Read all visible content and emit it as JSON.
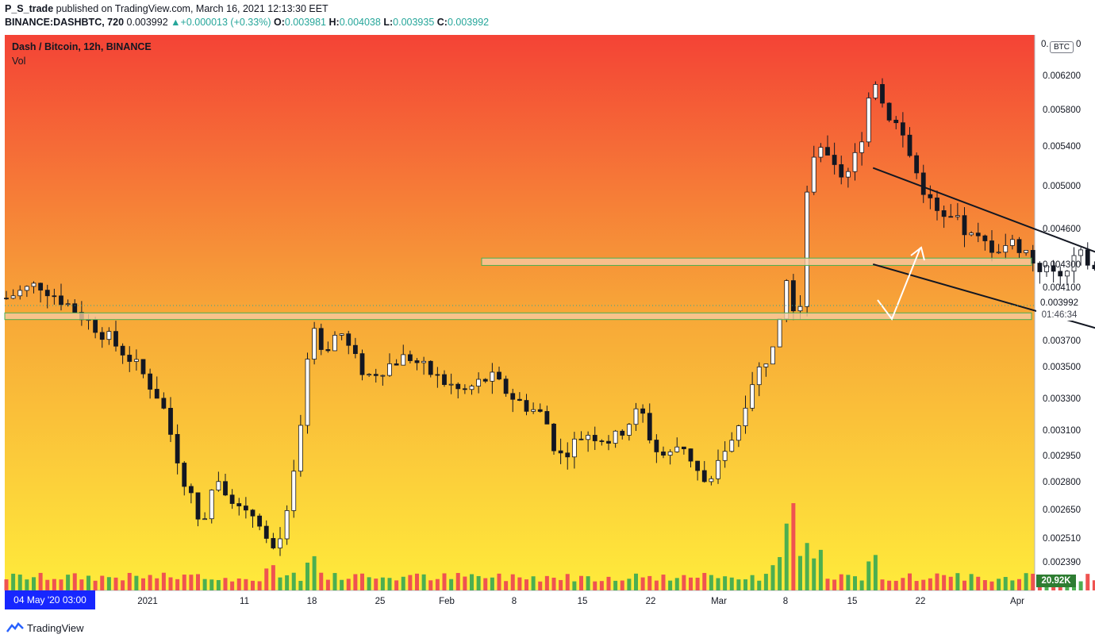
{
  "header": {
    "author": "P_S_trade",
    "published_text": "published on TradingView.com, March 16, 2021 12:13:30 EET",
    "symbol": "BINANCE:DASHBTC, 720",
    "last": "0.003992",
    "change": "+0.000013 (+0.33%)",
    "open_label": "O:",
    "open": "0.003981",
    "high_label": "H:",
    "high": "0.004038",
    "low_label": "L:",
    "low": "0.003935",
    "close_label": "C:",
    "close": "0.003992"
  },
  "legend": {
    "title": "Dash / Bitcoin, 12h, BINANCE",
    "vol": "Vol"
  },
  "price_axis": {
    "currency": "BTC",
    "top_partial": "0.",
    "top_partial_end": "0",
    "last_price": "0.003992",
    "countdown": "01:46:34",
    "volume_label": "20.92K"
  },
  "date_badge": "04 May '20   03:00",
  "footer": {
    "brand": "TradingView"
  },
  "colors": {
    "up": "#26a69a",
    "bull_body": "#ffffff",
    "bear_body": "#131722",
    "vol_up": "#4caf50",
    "vol_down": "#ef5350",
    "zone_fill": "#f8c9a0",
    "zone_border": "#4caf50",
    "gradient_top": "#f44336",
    "gradient_mid": "#f7a738",
    "gradient_bottom": "#ffeb3b"
  },
  "chart_data": {
    "type": "candlestick",
    "title": "Dash / Bitcoin, 12h, BINANCE",
    "ylabel": "BTC",
    "scale": "log",
    "ylim": [
      0.00232,
      0.0067
    ],
    "y_ticks": [
      "0.006200",
      "0.005800",
      "0.005400",
      "0.005000",
      "0.004600",
      "0.004300",
      "0.004100",
      "0.003700",
      "0.003500",
      "0.003300",
      "0.003100",
      "0.002950",
      "0.002800",
      "0.002650",
      "0.002510",
      "0.002390"
    ],
    "x_ticks": [
      "2021",
      "11",
      "18",
      "25",
      "Feb",
      "8",
      "15",
      "22",
      "Mar",
      "8",
      "15",
      "22",
      "Apr"
    ],
    "price_path": [
      [
        "2020-12-13",
        0.00475
      ],
      [
        "2020-12-17",
        0.00465
      ],
      [
        "2020-12-20",
        0.0043
      ],
      [
        "2020-12-21",
        0.004
      ],
      [
        "2020-12-24",
        0.00415
      ],
      [
        "2020-12-26",
        0.004
      ],
      [
        "2020-12-29",
        0.00375
      ],
      [
        "2020-12-31",
        0.00355
      ],
      [
        "2021-01-02",
        0.0033
      ],
      [
        "2021-01-03",
        0.003
      ],
      [
        "2021-01-04",
        0.00275
      ],
      [
        "2021-01-05",
        0.0026
      ],
      [
        "2021-01-06",
        0.00285
      ],
      [
        "2021-01-07",
        0.00275
      ],
      [
        "2021-01-08",
        0.00262
      ],
      [
        "2021-01-09",
        0.00265
      ],
      [
        "2021-01-10",
        0.00245
      ],
      [
        "2021-01-11",
        0.00255
      ],
      [
        "2021-01-12",
        0.003
      ],
      [
        "2021-01-13",
        0.0038
      ],
      [
        "2021-01-14",
        0.00365
      ],
      [
        "2021-01-15",
        0.0038
      ],
      [
        "2021-01-16",
        0.0036
      ],
      [
        "2021-01-17",
        0.00345
      ],
      [
        "2021-01-20",
        0.0036
      ],
      [
        "2021-01-22",
        0.00345
      ],
      [
        "2021-01-24",
        0.00335
      ],
      [
        "2021-01-26",
        0.00345
      ],
      [
        "2021-01-28",
        0.0033
      ],
      [
        "2021-01-30",
        0.0032
      ],
      [
        "2021-01-31",
        0.00295
      ],
      [
        "2021-02-02",
        0.0031
      ],
      [
        "2021-02-04",
        0.00305
      ],
      [
        "2021-02-06",
        0.00325
      ],
      [
        "2021-02-07",
        0.003
      ],
      [
        "2021-02-08",
        0.00295
      ],
      [
        "2021-02-09",
        0.00305
      ],
      [
        "2021-02-10",
        0.0029
      ],
      [
        "2021-02-11",
        0.00275
      ],
      [
        "2021-02-12",
        0.003
      ],
      [
        "2021-02-13",
        0.0031
      ],
      [
        "2021-02-14",
        0.0034
      ],
      [
        "2021-02-15",
        0.00355
      ],
      [
        "2021-02-16",
        0.0037
      ],
      [
        "2021-02-17",
        0.0044
      ],
      [
        "2021-02-17T12",
        0.0057
      ],
      [
        "2021-02-18",
        0.0049
      ],
      [
        "2021-02-19",
        0.0054
      ],
      [
        "2021-02-20",
        0.0052
      ],
      [
        "2021-02-21",
        0.0051
      ],
      [
        "2021-02-22",
        0.0054
      ],
      [
        "2021-02-23",
        0.00625
      ],
      [
        "2021-02-24",
        0.0058
      ],
      [
        "2021-02-25",
        0.0056
      ],
      [
        "2021-02-26",
        0.0052
      ],
      [
        "2021-02-27",
        0.0049
      ],
      [
        "2021-02-28",
        0.0047
      ],
      [
        "2021-03-01",
        0.0047
      ],
      [
        "2021-03-02",
        0.00455
      ],
      [
        "2021-03-03",
        0.0045
      ],
      [
        "2021-03-04",
        0.00445
      ],
      [
        "2021-03-05",
        0.0045
      ],
      [
        "2021-03-06",
        0.00445
      ],
      [
        "2021-03-07",
        0.0043
      ],
      [
        "2021-03-08",
        0.00425
      ],
      [
        "2021-03-09",
        0.0042
      ],
      [
        "2021-03-10",
        0.0044
      ],
      [
        "2021-03-11",
        0.0043
      ],
      [
        "2021-03-12",
        0.00415
      ],
      [
        "2021-03-13",
        0.00405
      ],
      [
        "2021-03-14",
        0.00395
      ],
      [
        "2021-03-15",
        0.00398
      ],
      [
        "2021-03-16",
        0.003992
      ]
    ],
    "volume_profile": [
      [
        "2021-01-04",
        0.18
      ],
      [
        "2021-01-10",
        0.25
      ],
      [
        "2021-01-13",
        0.35
      ],
      [
        "2021-02-11",
        0.12
      ],
      [
        "2021-02-16",
        0.35
      ],
      [
        "2021-02-17",
        0.95
      ],
      [
        "2021-02-18",
        0.5
      ],
      [
        "2021-02-19",
        0.45
      ],
      [
        "2021-02-23",
        0.4
      ],
      [
        "2021-03-01",
        0.15
      ],
      [
        "2021-03-08",
        0.12
      ],
      [
        "2021-03-16",
        0.1
      ]
    ],
    "last_volume": "20.92K",
    "annotations": [
      {
        "type": "horizontal-zone",
        "from": 0.00431,
        "to": 0.00437
      },
      {
        "type": "horizontal-zone",
        "from": 0.00387,
        "to": 0.00392
      },
      {
        "type": "channel-line",
        "from": [
          "2021-02-23",
          0.0052
        ],
        "to": [
          "2021-03-21",
          0.004
        ]
      },
      {
        "type": "channel-line",
        "from": [
          "2021-02-23",
          0.00432
        ],
        "to": [
          "2021-03-21",
          0.00352
        ]
      },
      {
        "type": "projection-arrow",
        "points": [
          [
            "2021-03-16",
            0.00397
          ],
          [
            "2021-03-18",
            0.00386
          ],
          [
            "2021-03-20",
            0.00442
          ]
        ]
      }
    ]
  }
}
